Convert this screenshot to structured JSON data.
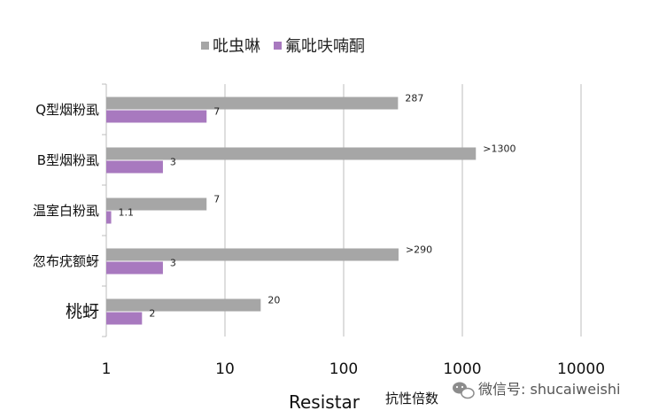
{
  "chart_data": {
    "type": "bar",
    "orientation": "horizontal",
    "x_scale": "log",
    "xlim": [
      1,
      10000
    ],
    "categories": [
      "Q型烟粉虱",
      "B型烟粉虱",
      "温室白粉虱",
      "忽布疣额蚜",
      "桃蚜"
    ],
    "series": [
      {
        "name": "吡虫啉",
        "values": [
          287,
          1300,
          7,
          290,
          20
        ],
        "labels": [
          "287",
          ">1300",
          "7",
          ">290",
          "20"
        ],
        "color": "#a6a6a6"
      },
      {
        "name": "氟吡呋喃酮",
        "values": [
          7,
          3,
          1.1,
          3,
          2
        ],
        "labels": [
          "7",
          "3",
          "1.1",
          "3",
          "2"
        ],
        "color": "#a879bf"
      }
    ],
    "x_ticks": [
      "1",
      "10",
      "100",
      "1000",
      "10000"
    ],
    "xlabel": "Resistar",
    "xlabel_sub": "抗性倍数",
    "grid": "vertical",
    "legend_position": "top-center"
  },
  "watermark": {
    "text": "微信号: shucaiweishi",
    "icon": "wechat-icon"
  }
}
